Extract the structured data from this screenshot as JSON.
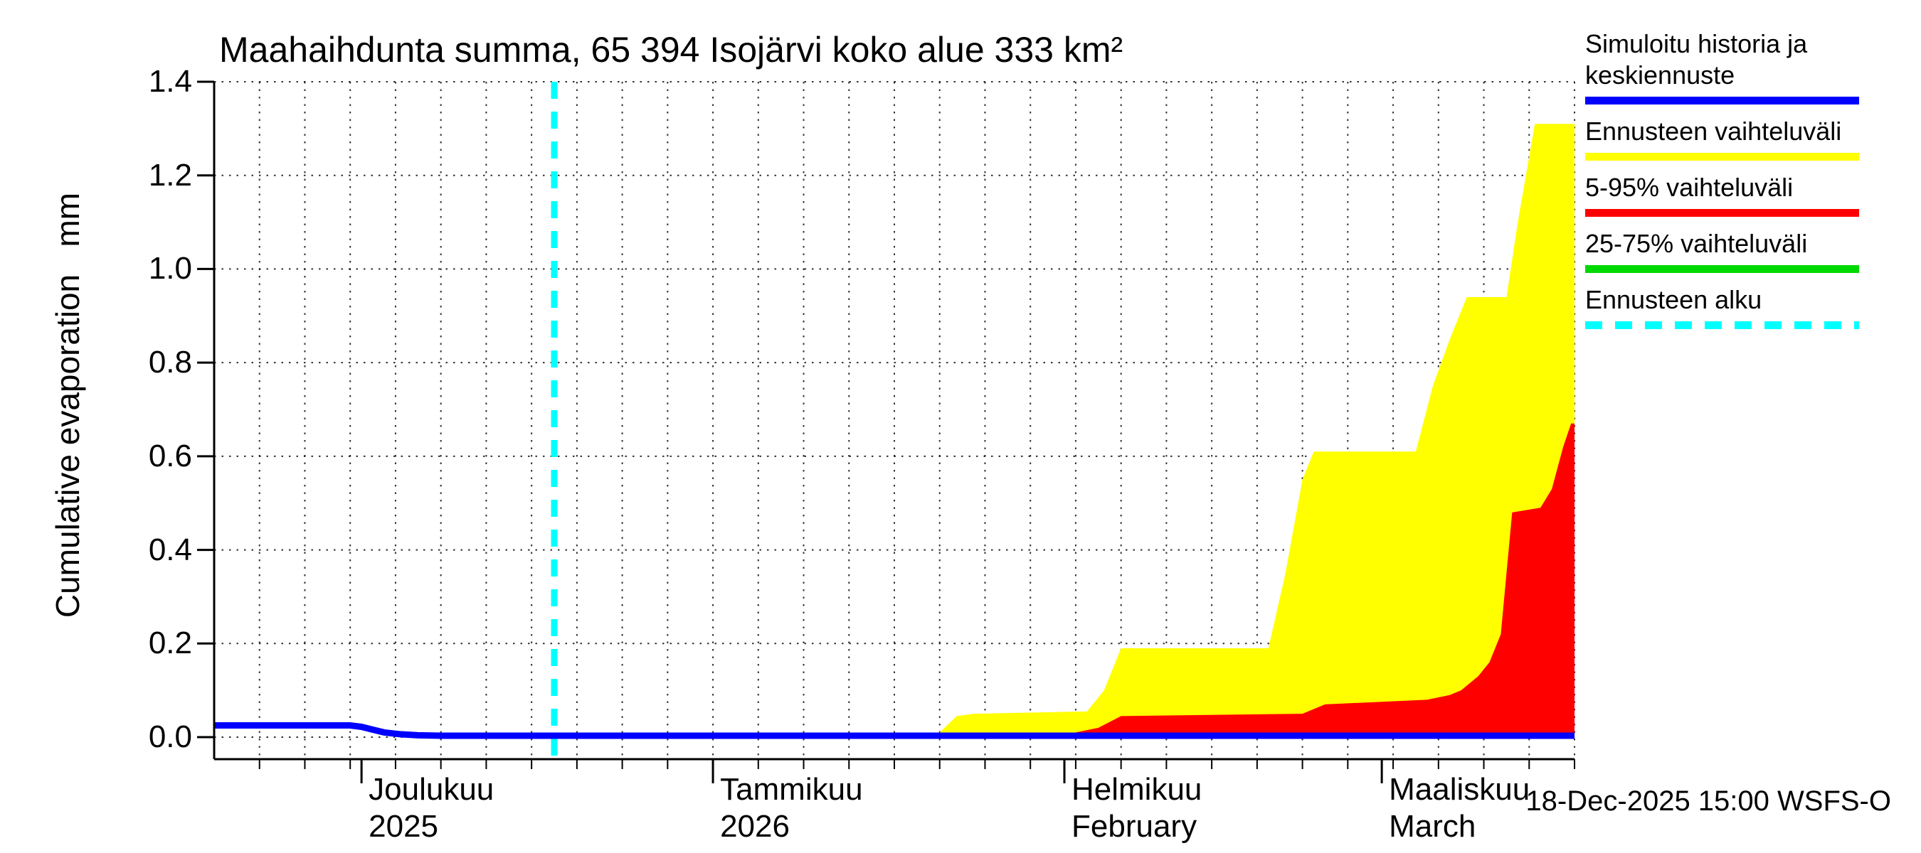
{
  "title": "Maahaihdunta summa, 65 394 Isojärvi koko alue 333 km²",
  "y_axis": {
    "label": "Cumulative evaporation   mm"
  },
  "legend": {
    "items": [
      {
        "label": "Simuloitu historia ja keskiennuste",
        "color": "#0000ff",
        "dashed": false
      },
      {
        "label": "Ennusteen vaihteluväli",
        "color": "#ffff00",
        "dashed": false
      },
      {
        "label": "5-95% vaihteluväli",
        "color": "#ff0000",
        "dashed": false
      },
      {
        "label": "25-75% vaihteluväli",
        "color": "#00d900",
        "dashed": false
      },
      {
        "label": "Ennusteen alku",
        "color": "#00ffff",
        "dashed": true
      }
    ]
  },
  "footer": {
    "timestamp": "18-Dec-2025 15:00 WSFS-O"
  },
  "chart_data": {
    "type": "area",
    "title": "Maahaihdunta summa, 65 394 Isojärvi koko alue 333 km²",
    "ylabel": "Cumulative evaporation (mm)",
    "ylim": [
      -0.047,
      1.4
    ],
    "y_ticks": [
      "0.0",
      "0.2",
      "0.4",
      "0.6",
      "0.8",
      "1.0",
      "1.2",
      "1.4"
    ],
    "x_axis_days_total": 120,
    "x_gridline_every_days": 4,
    "grid": true,
    "legend_position": "top-right",
    "forecast_start": {
      "day": 30,
      "date_label": "18-Dec-2025",
      "color": "#00ffff"
    },
    "months": [
      {
        "label": "Joulukuu",
        "sublabel": "2025",
        "start_day": 13
      },
      {
        "label": "Tammikuu",
        "sublabel": "2026",
        "start_day": 44
      },
      {
        "label": "Helmikuu",
        "sublabel": "February",
        "start_day": 75
      },
      {
        "label": "Maaliskuu",
        "sublabel": "March",
        "start_day": 103
      }
    ],
    "series": [
      {
        "name": "Ennusteen vaihteluväli",
        "kind": "area",
        "color": "#ffff00",
        "points": [
          [
            30,
            0
          ],
          [
            60,
            0
          ],
          [
            62,
            0.005
          ],
          [
            64,
            0.01
          ],
          [
            65.5,
            0.045
          ],
          [
            67,
            0.05
          ],
          [
            77,
            0.055
          ],
          [
            78.5,
            0.1
          ],
          [
            80,
            0.19
          ],
          [
            93,
            0.19
          ],
          [
            94.5,
            0.35
          ],
          [
            96,
            0.55
          ],
          [
            97,
            0.61
          ],
          [
            106,
            0.61
          ],
          [
            107.5,
            0.75
          ],
          [
            109,
            0.85
          ],
          [
            110.5,
            0.94
          ],
          [
            114,
            0.94
          ],
          [
            115,
            1.1
          ],
          [
            116.5,
            1.31
          ],
          [
            120,
            1.31
          ]
        ]
      },
      {
        "name": "5-95% vaihteluväli",
        "kind": "area",
        "color": "#ff0000",
        "points": [
          [
            30,
            0
          ],
          [
            74,
            0
          ],
          [
            76,
            0.01
          ],
          [
            78,
            0.02
          ],
          [
            80,
            0.045
          ],
          [
            96,
            0.05
          ],
          [
            98,
            0.07
          ],
          [
            107,
            0.08
          ],
          [
            109,
            0.09
          ],
          [
            110,
            0.1
          ],
          [
            111.5,
            0.13
          ],
          [
            112.5,
            0.16
          ],
          [
            113.5,
            0.22
          ],
          [
            114.5,
            0.48
          ],
          [
            117,
            0.49
          ],
          [
            118,
            0.53
          ],
          [
            119,
            0.62
          ],
          [
            119.7,
            0.67
          ],
          [
            120,
            0.67
          ]
        ]
      },
      {
        "name": "25-75% vaihteluväli",
        "kind": "area",
        "color": "#00d900",
        "points": [
          [
            30,
            0
          ],
          [
            80,
            0.003
          ],
          [
            120,
            0.006
          ]
        ]
      },
      {
        "name": "Simuloitu historia ja keskiennuste",
        "kind": "line",
        "color": "#0000ff",
        "points": [
          [
            0,
            0.025
          ],
          [
            12,
            0.025
          ],
          [
            13,
            0.022
          ],
          [
            14,
            0.016
          ],
          [
            15,
            0.01
          ],
          [
            16.5,
            0.006
          ],
          [
            18,
            0.004
          ],
          [
            20,
            0.003
          ],
          [
            120,
            0.003
          ]
        ]
      }
    ]
  }
}
